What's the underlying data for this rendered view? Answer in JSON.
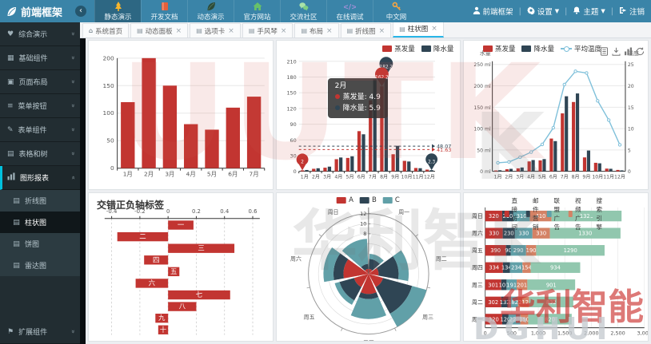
{
  "navbar": {
    "logo": "前端框架",
    "collapse_icon": "‹",
    "menu": [
      {
        "label": "静态演示",
        "icon": "tree-icon",
        "active": true
      },
      {
        "label": "开发文档",
        "icon": "book-icon",
        "active": false
      },
      {
        "label": "动态演示",
        "icon": "leaf-icon",
        "active": false
      },
      {
        "label": "官方网站",
        "icon": "home-icon",
        "active": false
      },
      {
        "label": "交流社区",
        "icon": "chat-icon",
        "active": false
      },
      {
        "label": "在线调试",
        "icon": "code-icon",
        "active": false
      },
      {
        "label": "中文网",
        "icon": "key-icon",
        "active": false
      }
    ],
    "user": "前端框架",
    "right": [
      {
        "label": "设置",
        "icon": "gear-icon",
        "caret": true
      },
      {
        "label": "主题",
        "icon": "bell-icon",
        "caret": true
      },
      {
        "label": "注销",
        "icon": "logout-icon",
        "caret": false
      }
    ]
  },
  "sidebar": {
    "items": [
      {
        "label": "综合演示",
        "icon": "heart-icon"
      },
      {
        "label": "基础组件",
        "icon": "grid-icon"
      },
      {
        "label": "页面布局",
        "icon": "layout-icon"
      },
      {
        "label": "菜单按钮",
        "icon": "list-icon"
      },
      {
        "label": "表单组件",
        "icon": "pencil-icon"
      },
      {
        "label": "表格和树",
        "icon": "table-icon"
      },
      {
        "label": "图形报表",
        "icon": "chart-icon",
        "active": true,
        "expanded": true,
        "children": [
          {
            "label": "折线图",
            "active": false
          },
          {
            "label": "柱状图",
            "active": true
          },
          {
            "label": "饼图",
            "active": false
          },
          {
            "label": "雷达图",
            "active": false
          }
        ]
      },
      {
        "label": "扩展组件",
        "icon": "flag-icon",
        "bottom": true
      }
    ]
  },
  "tabs": [
    {
      "label": "系统首页",
      "icon": "home-icon",
      "closable": false,
      "active": false
    },
    {
      "label": "动态面板",
      "icon": "doc-icon",
      "closable": true,
      "active": false
    },
    {
      "label": "选项卡",
      "icon": "doc-icon",
      "closable": true,
      "active": false
    },
    {
      "label": "手风琴",
      "icon": "doc-icon",
      "closable": true,
      "active": false
    },
    {
      "label": "布局",
      "icon": "doc-icon",
      "closable": true,
      "active": false
    },
    {
      "label": "折线图",
      "icon": "doc-icon",
      "closable": true,
      "active": false
    },
    {
      "label": "柱状图",
      "icon": "doc-icon",
      "closable": true,
      "active": true
    }
  ],
  "watermarks": {
    "top": "UUTK",
    "middle": "华利智K",
    "bottom_cn": "华利智能",
    "bottom_en": "DGHUI"
  },
  "chart_data": [
    {
      "id": "bar-simple",
      "type": "bar",
      "categories": [
        "1月",
        "2月",
        "3月",
        "4月",
        "5月",
        "6月",
        "7月"
      ],
      "values": [
        120,
        200,
        150,
        80,
        70,
        110,
        130
      ],
      "ylim": [
        0,
        200
      ],
      "ytick_step": 50,
      "color": "#c23531",
      "grid": true
    },
    {
      "id": "rainfall-evaporation",
      "type": "bar",
      "categories": [
        "1月",
        "2月",
        "3月",
        "4月",
        "5月",
        "6月",
        "7月",
        "8月",
        "9月",
        "10月",
        "11月",
        "12月"
      ],
      "series": [
        {
          "name": "蒸发量",
          "color": "#c23531",
          "values": [
            2.0,
            4.9,
            7.0,
            23.2,
            25.6,
            76.7,
            135.6,
            162.2,
            32.6,
            20.0,
            6.4,
            3.3
          ],
          "max_label": "162.2",
          "max_at": 7,
          "min_label": "2",
          "min_at": 0,
          "avg": 41.63,
          "avg_label": "41.63"
        },
        {
          "name": "降水量",
          "color": "#2f4554",
          "values": [
            2.6,
            5.9,
            9.0,
            26.4,
            28.7,
            70.7,
            175.6,
            182.2,
            48.7,
            18.8,
            6.0,
            2.3
          ],
          "max_label": "182.2",
          "max_at": 7,
          "min_label": "2.3",
          "min_at": 11,
          "avg": 48.07,
          "avg_label": "48.07"
        }
      ],
      "ylim": [
        0,
        210
      ],
      "ytick_step": 30,
      "tooltip": {
        "title": "2月",
        "rows": [
          {
            "name": "蒸发量",
            "value": "4.9",
            "color": "#c23531"
          },
          {
            "name": "降水量",
            "value": "5.9",
            "color": "#2f4554"
          }
        ]
      }
    },
    {
      "id": "water-temperature",
      "type": "bar-line",
      "categories": [
        "1月",
        "2月",
        "3月",
        "4月",
        "5月",
        "6月",
        "7月",
        "8月",
        "9月",
        "10月",
        "11月",
        "12月"
      ],
      "series": [
        {
          "name": "蒸发量",
          "color": "#c23531",
          "values": [
            2.0,
            4.9,
            7.0,
            23.2,
            25.6,
            76.7,
            135.6,
            162.2,
            32.6,
            20.0,
            6.4,
            3.3
          ]
        },
        {
          "name": "降水量",
          "color": "#2f4554",
          "values": [
            2.6,
            5.9,
            9.0,
            26.4,
            28.7,
            70.7,
            175.6,
            182.2,
            48.7,
            18.8,
            6.0,
            2.3
          ]
        }
      ],
      "line": {
        "name": "平均温度",
        "color": "#7fc0da",
        "values": [
          2.0,
          2.2,
          3.3,
          4.5,
          6.3,
          10.2,
          20.3,
          23.4,
          23.0,
          16.5,
          12.0,
          6.2
        ]
      },
      "left_axis": {
        "name": "水量",
        "max": 250,
        "step": 50,
        "suffix": " ml"
      },
      "right_axis": {
        "name": "温度",
        "max": 25,
        "step": 5
      },
      "toolbox": [
        "data-view-icon",
        "download-icon",
        "bar-type-icon",
        "restore-icon"
      ]
    },
    {
      "id": "negative-bar",
      "type": "bar-horizontal",
      "title": "交错正负轴标签",
      "categories": [
        "一",
        "二",
        "三",
        "四",
        "五",
        "六",
        "七",
        "八",
        "九",
        "十"
      ],
      "values": [
        0.18,
        -0.36,
        0.47,
        -0.17,
        0.08,
        -0.23,
        0.44,
        0.2,
        -0.09,
        -0.07
      ],
      "xticks": [
        -0.4,
        -0.2,
        0,
        0.2,
        0.4,
        0.6
      ],
      "xlim": [
        -0.45,
        0.65
      ],
      "color": "#c23531"
    },
    {
      "id": "polar-stacked",
      "type": "polar-bar",
      "categories": [
        "周一",
        "周二",
        "周三",
        "周四",
        "周五",
        "周六",
        "周日"
      ],
      "series": [
        {
          "name": "A",
          "color": "#c23531",
          "values": [
            1,
            2,
            3,
            4,
            3,
            5,
            1
          ]
        },
        {
          "name": "B",
          "color": "#2f4554",
          "values": [
            2,
            4,
            6,
            1,
            3,
            2,
            1
          ]
        },
        {
          "name": "C",
          "color": "#61a0a8",
          "values": [
            1,
            2,
            3,
            4,
            1,
            2,
            5
          ]
        }
      ],
      "rmax": 12,
      "rticks": [
        8,
        10,
        12
      ]
    },
    {
      "id": "stacked-horizontal",
      "type": "bar-horizontal-stacked",
      "categories": [
        "周一",
        "周二",
        "周三",
        "周四",
        "周五",
        "周六",
        "周日"
      ],
      "series": [
        {
          "name": "直接访问",
          "color": "#c23531",
          "values": [
            320,
            302,
            301,
            334,
            390,
            330,
            320
          ]
        },
        {
          "name": "邮件营销",
          "color": "#2f4554",
          "values": [
            120,
            132,
            101,
            134,
            90,
            230,
            210
          ]
        },
        {
          "name": "联盟广告",
          "color": "#61a0a8",
          "values": [
            220,
            182,
            191,
            234,
            290,
            330,
            310
          ]
        },
        {
          "name": "视频广告",
          "color": "#d48265",
          "values": [
            150,
            212,
            201,
            154,
            190,
            330,
            410
          ]
        },
        {
          "name": "搜索引擎",
          "color": "#91c7ae",
          "values": [
            820,
            832,
            901,
            934,
            1290,
            1330,
            1320
          ]
        }
      ],
      "xmax": 3000,
      "xtick_step": 500
    }
  ]
}
